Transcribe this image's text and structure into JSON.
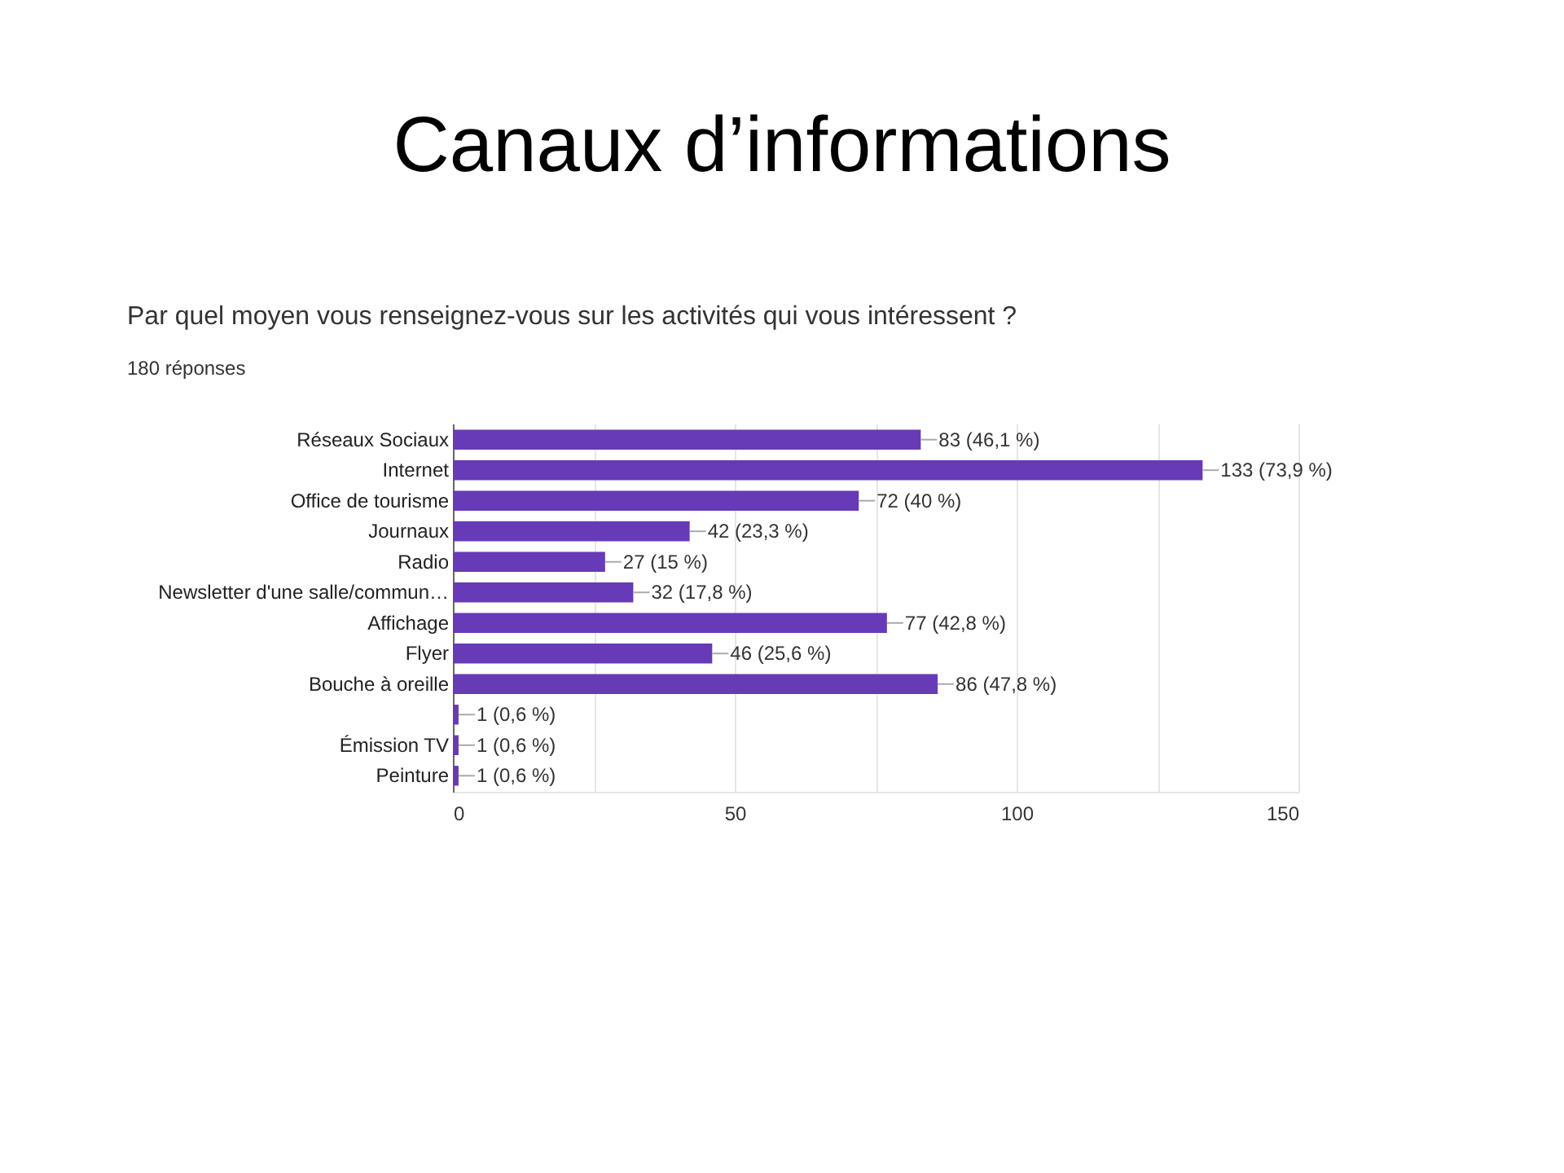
{
  "chart_data": {
    "type": "bar",
    "orientation": "horizontal",
    "title": "Canaux d’informations",
    "subtitle": "Par quel moyen vous renseignez-vous sur les activités qui vous intéressent ?",
    "annotations": [
      "180 réponses"
    ],
    "categories": [
      "Réseaux Sociaux",
      "Internet",
      "Office de tourisme",
      "Journaux",
      "Radio",
      "Newsletter d'une salle/commun…",
      "Affichage",
      "Flyer",
      "Bouche à oreille",
      null,
      "Émission TV",
      "Peinture"
    ],
    "values": [
      83,
      133,
      72,
      42,
      27,
      32,
      77,
      46,
      86,
      1,
      1,
      1
    ],
    "value_labels": [
      "83 (46,1 %)",
      "133 (73,9 %)",
      "72 (40 %)",
      "42 (23,3 %)",
      "27 (15 %)",
      "32 (17,8 %)",
      "77 (42,8 %)",
      "46 (25,6 %)",
      "86 (47,8 %)",
      "1 (0,6 %)",
      "1 (0,6 %)",
      "1 (0,6 %)"
    ],
    "color": "#673ab7",
    "xlim": [
      0,
      150
    ],
    "xticks": [
      0,
      {
        "value": 25,
        "label": null
      },
      50,
      {
        "value": 75,
        "label": null
      },
      100,
      {
        "value": 125,
        "label": null
      },
      150
    ],
    "grid": "x"
  }
}
